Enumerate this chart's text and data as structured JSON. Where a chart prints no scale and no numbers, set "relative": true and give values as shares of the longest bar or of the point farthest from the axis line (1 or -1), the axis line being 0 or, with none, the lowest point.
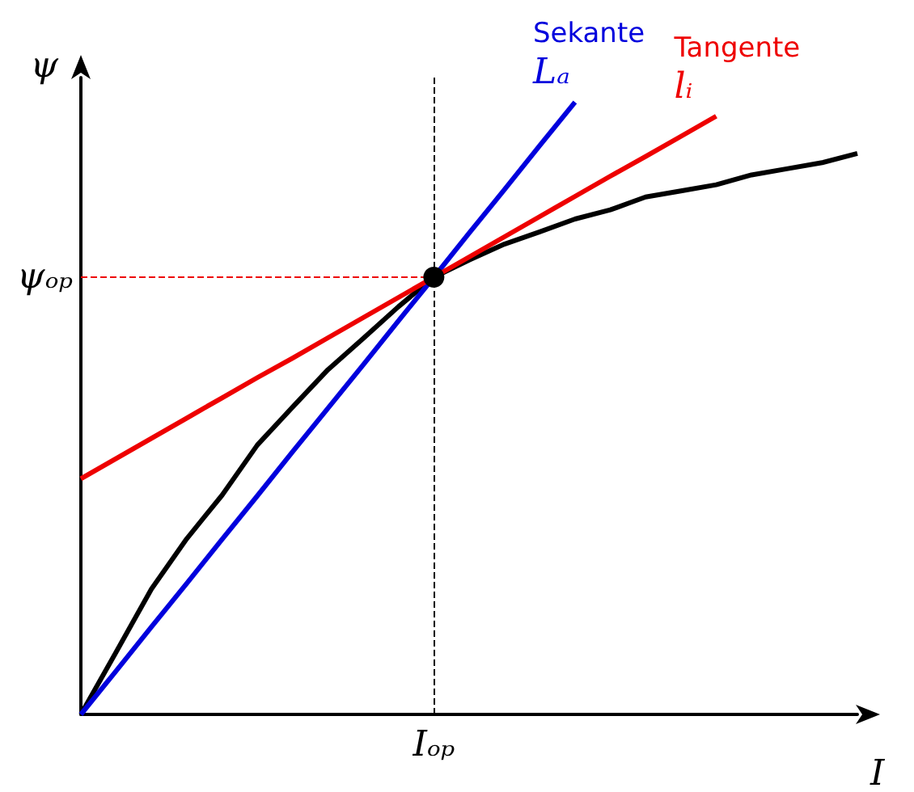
{
  "chart_data": {
    "type": "line",
    "relative": true,
    "xlabel": "I",
    "ylabel": "ψ",
    "legend": false,
    "grid": false,
    "marker": "none",
    "line_style": "solid",
    "categories": [
      null,
      null,
      null,
      null,
      null,
      null,
      null,
      null,
      null,
      null,
      null,
      null,
      null,
      null,
      null,
      null,
      null,
      null,
      null,
      null,
      null,
      null,
      null
    ],
    "series": [
      {
        "color": "#000000",
        "values": [
          0,
          0.102,
          0.205,
          0.287,
          0.358,
          0.44,
          0.502,
          0.563,
          0.614,
          0.666,
          0.714,
          0.742,
          0.768,
          0.788,
          0.809,
          0.824,
          0.845,
          0.855,
          0.865,
          0.881,
          0.891,
          0.901,
          0.916
        ]
      },
      {
        "name": "Sekante",
        "color": "#0000dd",
        "values": [
          0,
          0.071,
          0.143,
          0.214,
          0.286,
          0.357,
          0.429,
          0.5,
          0.571,
          0.643,
          0.714,
          0.786,
          0.857,
          0.929,
          1,
          null,
          null,
          null,
          null,
          null,
          null,
          null,
          null
        ]
      },
      {
        "name": "Tangente",
        "color": "#ee0000",
        "values": [
          0.385,
          0.418,
          0.451,
          0.484,
          0.517,
          0.55,
          0.582,
          0.615,
          0.648,
          0.681,
          0.714,
          0.747,
          0.78,
          0.813,
          0.846,
          0.879,
          0.911,
          0.944,
          0.977,
          null,
          null,
          null,
          null
        ]
      },
      {
        "marker": "circle",
        "color": "#000000",
        "values": [
          null,
          null,
          null,
          null,
          null,
          null,
          null,
          null,
          null,
          null,
          0.714,
          null,
          null,
          null,
          null,
          null,
          null,
          null,
          null,
          null,
          null,
          null,
          null
        ]
      }
    ],
    "ref_lines": [
      {
        "axis": "x",
        "label": "Iₒₚ",
        "color": "#000000",
        "line_style": "dashed"
      },
      {
        "axis": "y",
        "value": 0.714,
        "label": "ψₒₚ",
        "color": "#ee0000",
        "line_style": "dashed"
      }
    ],
    "annotations": [
      "Lₐ",
      "lᵢ"
    ]
  }
}
